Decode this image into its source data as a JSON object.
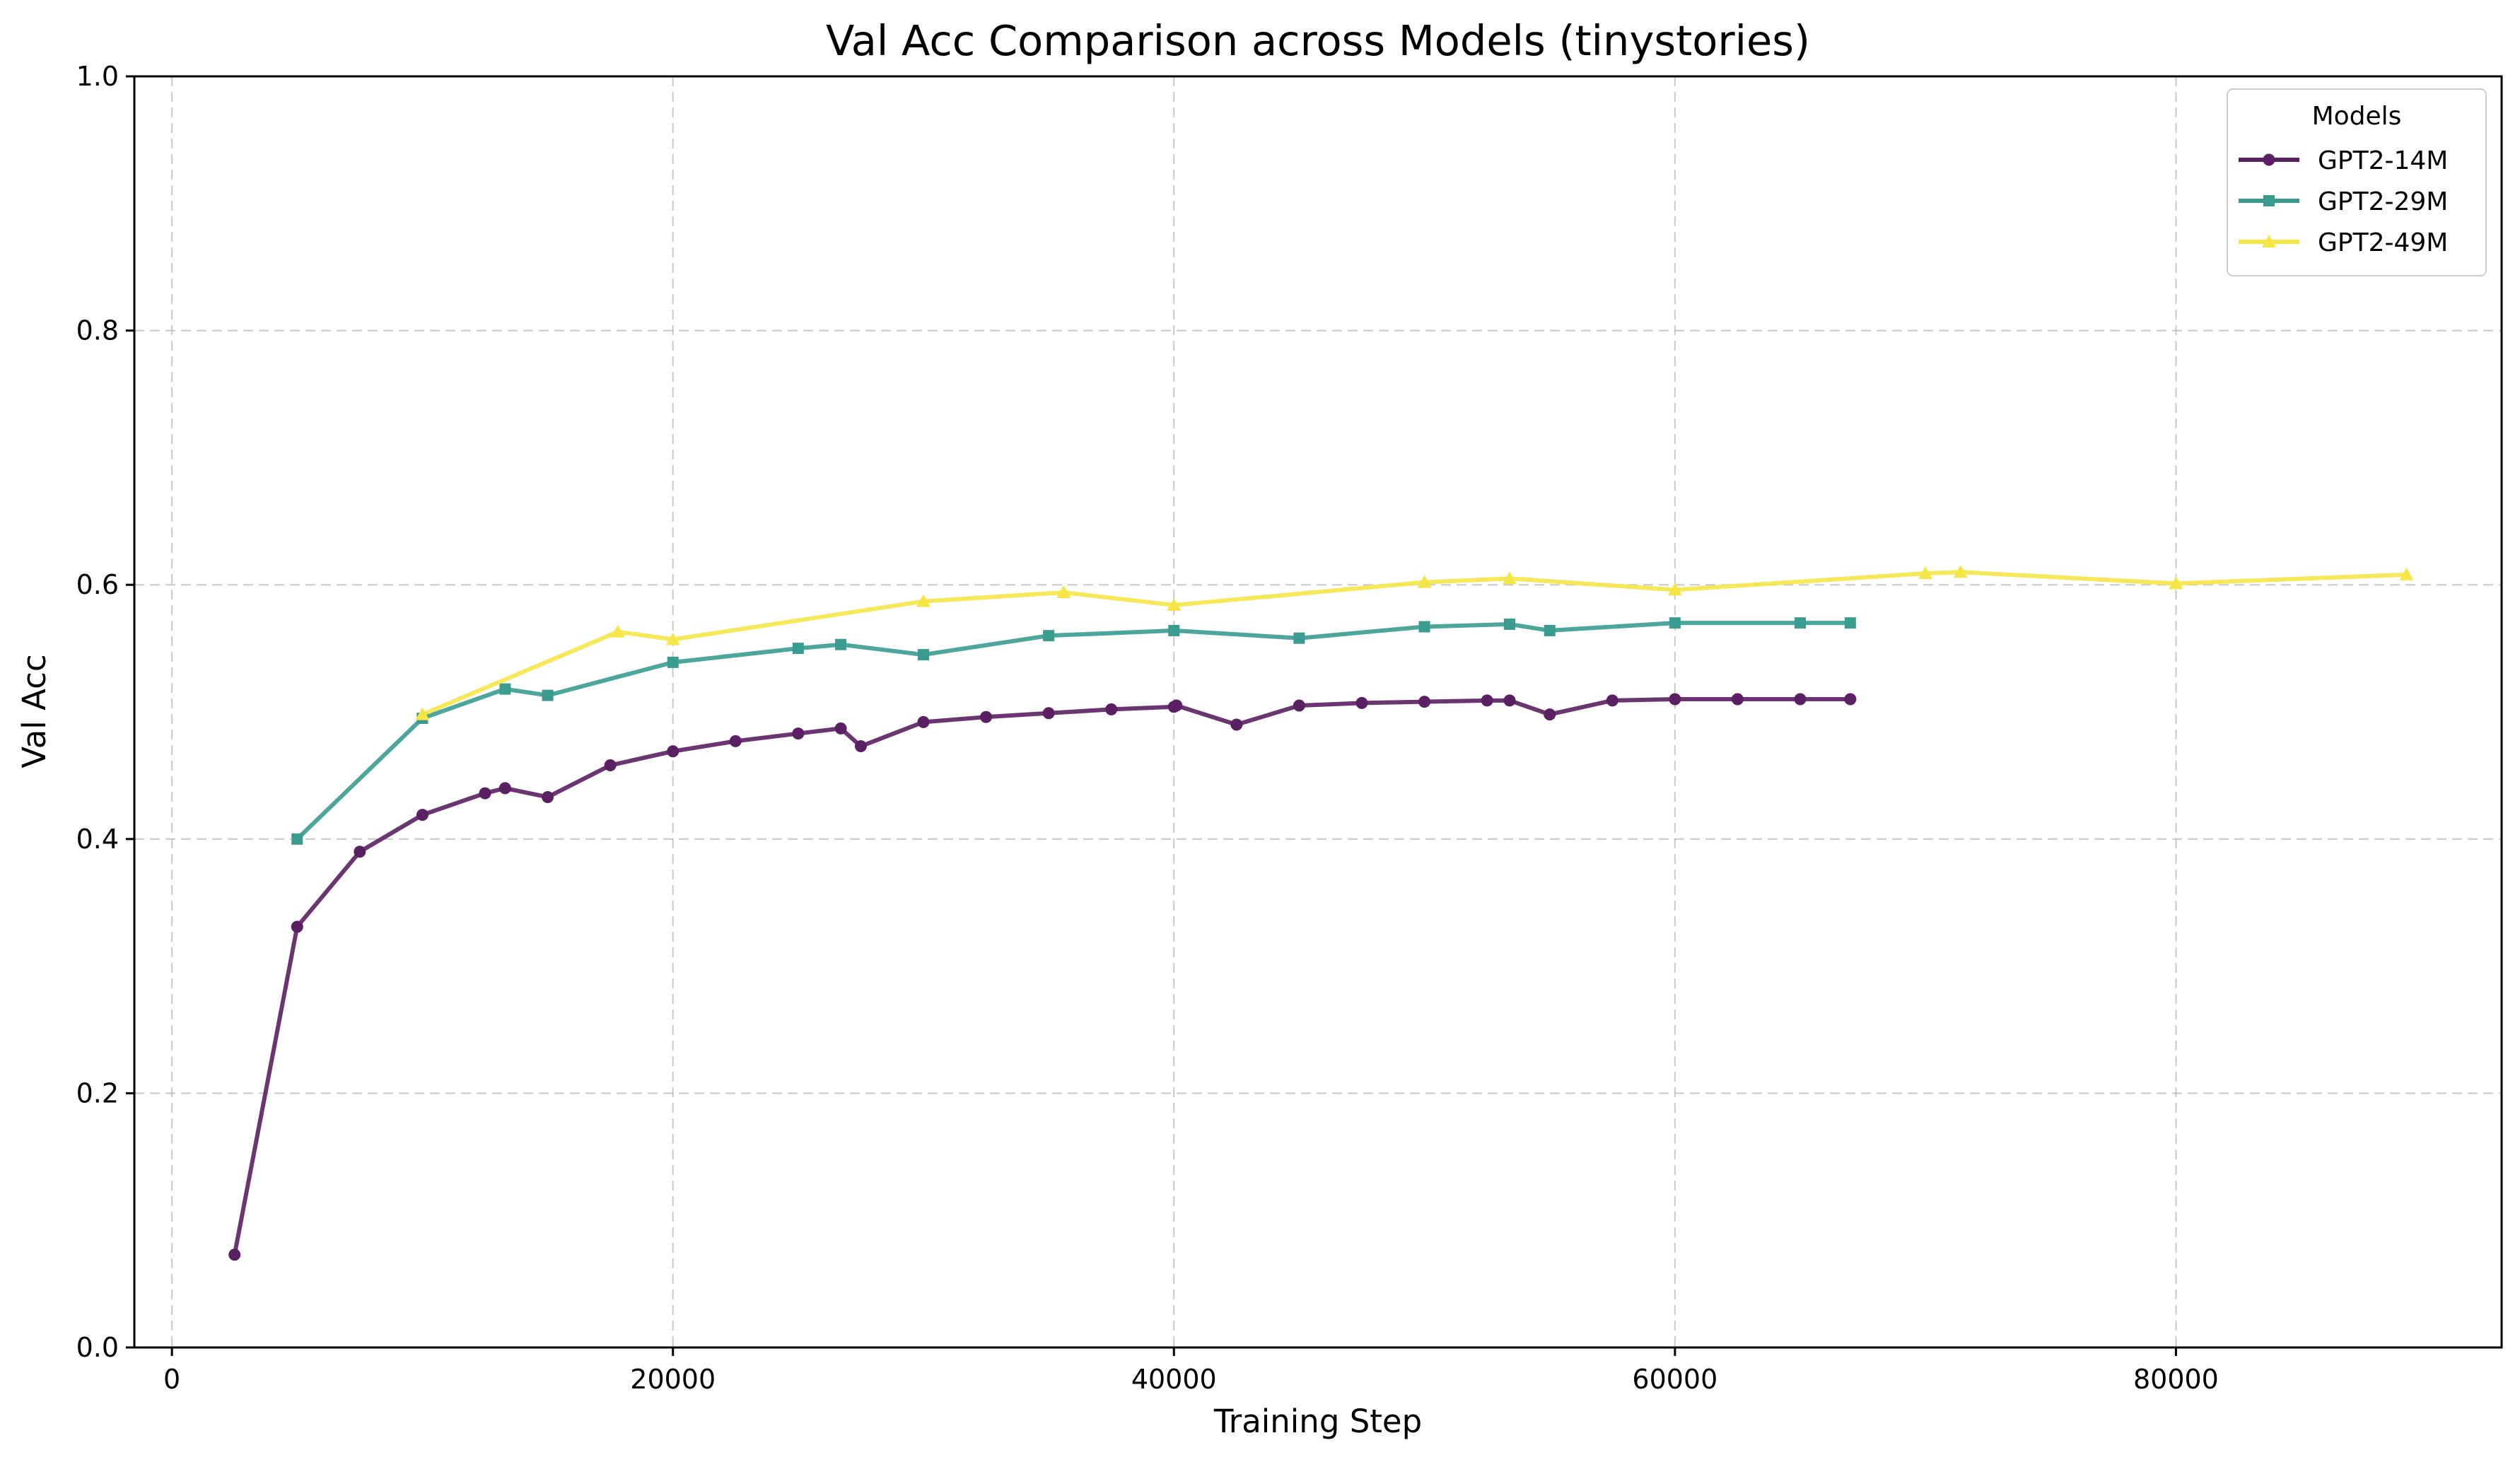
{
  "chart_data": {
    "type": "line",
    "title": "Val Acc Comparison across Models (tinystories)",
    "xlabel": "Training Step",
    "ylabel": "Val Acc",
    "xlim": [
      -1500,
      93000
    ],
    "ylim": [
      0,
      1.0
    ],
    "xticks": [
      0,
      20000,
      40000,
      60000,
      80000
    ],
    "xtick_labels": [
      "0",
      "20000",
      "40000",
      "60000",
      "80000"
    ],
    "yticks": [
      0.0,
      0.2,
      0.4,
      0.6,
      0.8,
      1.0
    ],
    "ytick_labels": [
      "0.0",
      "0.2",
      "0.4",
      "0.6",
      "0.8",
      "1.0"
    ],
    "grid": true,
    "legend_title": "Models",
    "legend_position": "top-right",
    "series": [
      {
        "name": "GPT2-14M",
        "color": "#5b1f63",
        "marker": "circle",
        "x": [
          2500,
          5000,
          7500,
          10000,
          12500,
          13300,
          15000,
          17500,
          20000,
          22500,
          25000,
          26700,
          27500,
          30000,
          32500,
          35000,
          37500,
          40000,
          40100,
          42500,
          45000,
          47500,
          50000,
          52500,
          53400,
          55000,
          57500,
          60000,
          62500,
          65000,
          67000
        ],
        "y": [
          0.073,
          0.331,
          0.39,
          0.419,
          0.436,
          0.44,
          0.433,
          0.458,
          0.469,
          0.477,
          0.483,
          0.487,
          0.473,
          0.492,
          0.496,
          0.499,
          0.502,
          0.504,
          0.505,
          0.49,
          0.505,
          0.507,
          0.508,
          0.509,
          0.509,
          0.498,
          0.509,
          0.51,
          0.51,
          0.51,
          0.51
        ]
      },
      {
        "name": "GPT2-29M",
        "color": "#3a9c91",
        "marker": "square",
        "x": [
          5000,
          10000,
          13300,
          15000,
          20000,
          25000,
          26700,
          30000,
          35000,
          40000,
          45000,
          50000,
          53400,
          55000,
          60000,
          65000,
          67000
        ],
        "y": [
          0.4,
          0.495,
          0.518,
          0.513,
          0.539,
          0.55,
          0.553,
          0.545,
          0.56,
          0.564,
          0.558,
          0.567,
          0.569,
          0.564,
          0.57,
          0.57,
          0.57
        ]
      },
      {
        "name": "GPT2-49M",
        "color": "#f5e646",
        "marker": "triangle",
        "x": [
          10000,
          17800,
          20000,
          30000,
          35600,
          40000,
          50000,
          53400,
          60000,
          70000,
          71400,
          80000,
          89200
        ],
        "y": [
          0.498,
          0.563,
          0.557,
          0.587,
          0.594,
          0.584,
          0.602,
          0.605,
          0.596,
          0.609,
          0.61,
          0.601,
          0.608
        ]
      }
    ]
  }
}
